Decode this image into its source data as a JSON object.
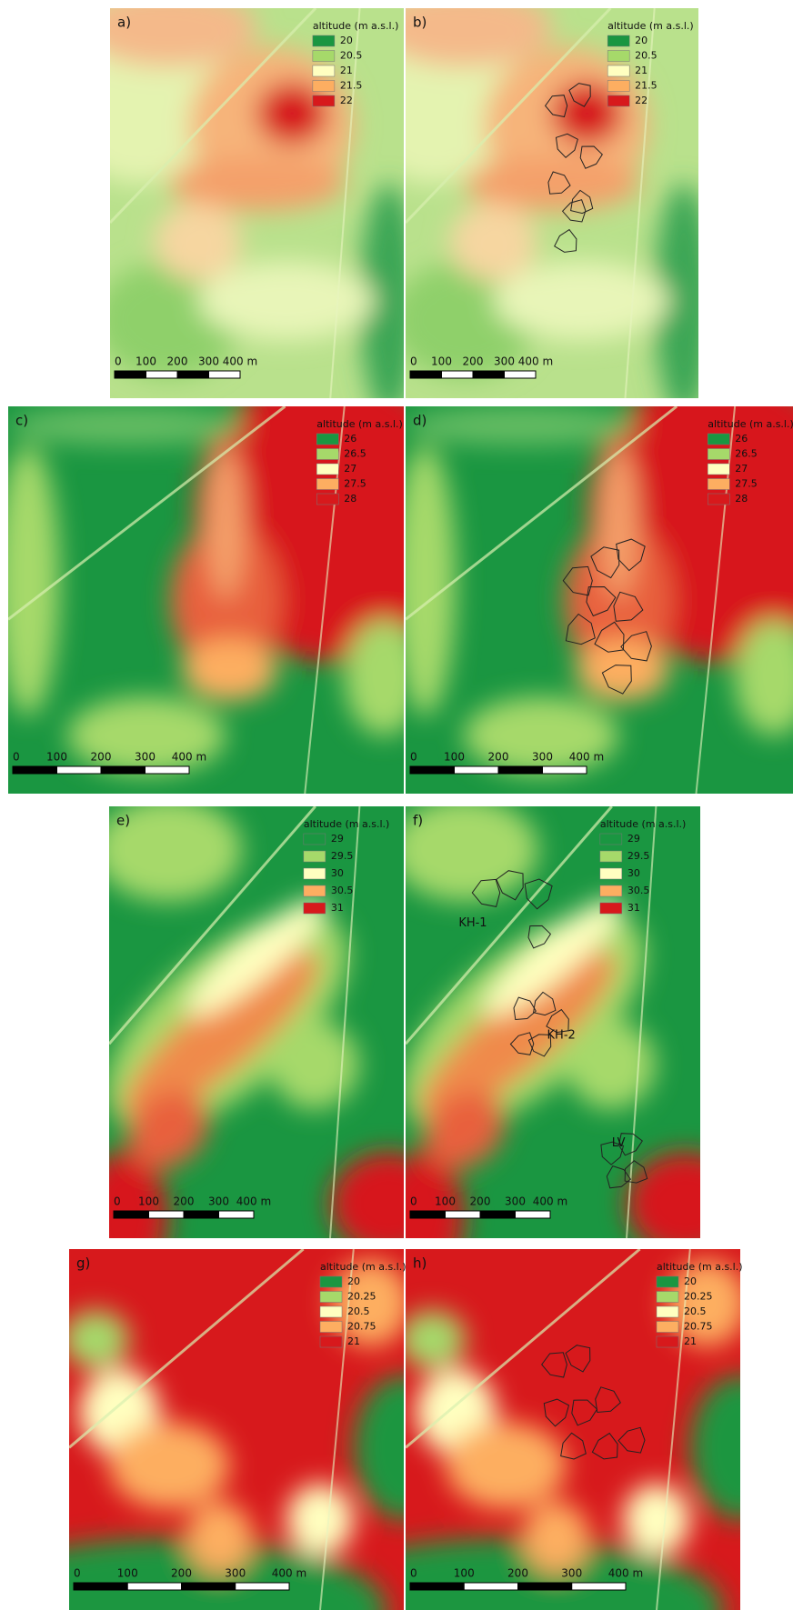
{
  "panels": [
    {
      "label": "a)",
      "legend": {
        "title": "altitude (m a.s.l.)",
        "items": [
          {
            "label": "20",
            "color": "#1a9641"
          },
          {
            "label": "20.5",
            "color": "#a6d96a"
          },
          {
            "label": "21",
            "color": "#ffffc0"
          },
          {
            "label": "21.5",
            "color": "#fdae61"
          },
          {
            "label": "22",
            "color": "#d7191c"
          }
        ]
      },
      "scale": [
        "0",
        "100",
        "200",
        "300",
        "400 m"
      ]
    },
    {
      "label": "b)",
      "legend": {
        "title": "altitude (m a.s.l.)",
        "items": [
          {
            "label": "20",
            "color": "#1a9641"
          },
          {
            "label": "20.5",
            "color": "#a6d96a"
          },
          {
            "label": "21",
            "color": "#ffffc0"
          },
          {
            "label": "21.5",
            "color": "#fdae61"
          },
          {
            "label": "22",
            "color": "#d7191c"
          }
        ]
      },
      "scale": [
        "0",
        "100",
        "200",
        "300",
        "400 m"
      ]
    },
    {
      "label": "c)",
      "legend": {
        "title": "altitude (m a.s.l.)",
        "items": [
          {
            "label": "26",
            "color": "#1a9641"
          },
          {
            "label": "26.5",
            "color": "#a6d96a"
          },
          {
            "label": "27",
            "color": "#ffffc0"
          },
          {
            "label": "27.5",
            "color": "#fdae61"
          },
          {
            "label": "28",
            "color": "#d7191c"
          }
        ]
      },
      "scale": [
        "0",
        "100",
        "200",
        "300",
        "400 m"
      ]
    },
    {
      "label": "d)",
      "legend": {
        "title": "altitude (m a.s.l.)",
        "items": [
          {
            "label": "26",
            "color": "#1a9641"
          },
          {
            "label": "26.5",
            "color": "#a6d96a"
          },
          {
            "label": "27",
            "color": "#ffffc0"
          },
          {
            "label": "27.5",
            "color": "#fdae61"
          },
          {
            "label": "28",
            "color": "#d7191c"
          }
        ]
      },
      "scale": [
        "0",
        "100",
        "200",
        "300",
        "400 m"
      ]
    },
    {
      "label": "e)",
      "legend": {
        "title": "altitude (m a.s.l.)",
        "items": [
          {
            "label": "29",
            "color": "#1a9641"
          },
          {
            "label": "29.5",
            "color": "#a6d96a"
          },
          {
            "label": "30",
            "color": "#ffffc0"
          },
          {
            "label": "30.5",
            "color": "#fdae61"
          },
          {
            "label": "31",
            "color": "#d7191c"
          }
        ]
      },
      "scale": [
        "0",
        "100",
        "200",
        "300",
        "400 m"
      ]
    },
    {
      "label": "f)",
      "legend": {
        "title": "altitude (m a.s.l.)",
        "items": [
          {
            "label": "29",
            "color": "#1a9641"
          },
          {
            "label": "29.5",
            "color": "#a6d96a"
          },
          {
            "label": "30",
            "color": "#ffffc0"
          },
          {
            "label": "30.5",
            "color": "#fdae61"
          },
          {
            "label": "31",
            "color": "#d7191c"
          }
        ]
      },
      "scale": [
        "0",
        "100",
        "200",
        "300",
        "400 m"
      ],
      "annotations": [
        {
          "text": "KH-1"
        },
        {
          "text": "KH-2"
        },
        {
          "text": "LV"
        }
      ]
    },
    {
      "label": "g)",
      "legend": {
        "title": "altitude (m a.s.l.)",
        "items": [
          {
            "label": "20",
            "color": "#1a9641"
          },
          {
            "label": "20.25",
            "color": "#a6d96a"
          },
          {
            "label": "20.5",
            "color": "#ffffc0"
          },
          {
            "label": "20.75",
            "color": "#fdae61"
          },
          {
            "label": "21",
            "color": "#d7191c"
          }
        ]
      },
      "scale": [
        "0",
        "100",
        "200",
        "300",
        "400 m"
      ]
    },
    {
      "label": "h)",
      "legend": {
        "title": "altitude (m a.s.l.)",
        "items": [
          {
            "label": "20",
            "color": "#1a9641"
          },
          {
            "label": "20.25",
            "color": "#a6d96a"
          },
          {
            "label": "20.5",
            "color": "#ffffc0"
          },
          {
            "label": "20.75",
            "color": "#fdae61"
          },
          {
            "label": "21",
            "color": "#d7191c"
          }
        ]
      },
      "scale": [
        "0",
        "100",
        "200",
        "300",
        "400 m"
      ]
    }
  ]
}
